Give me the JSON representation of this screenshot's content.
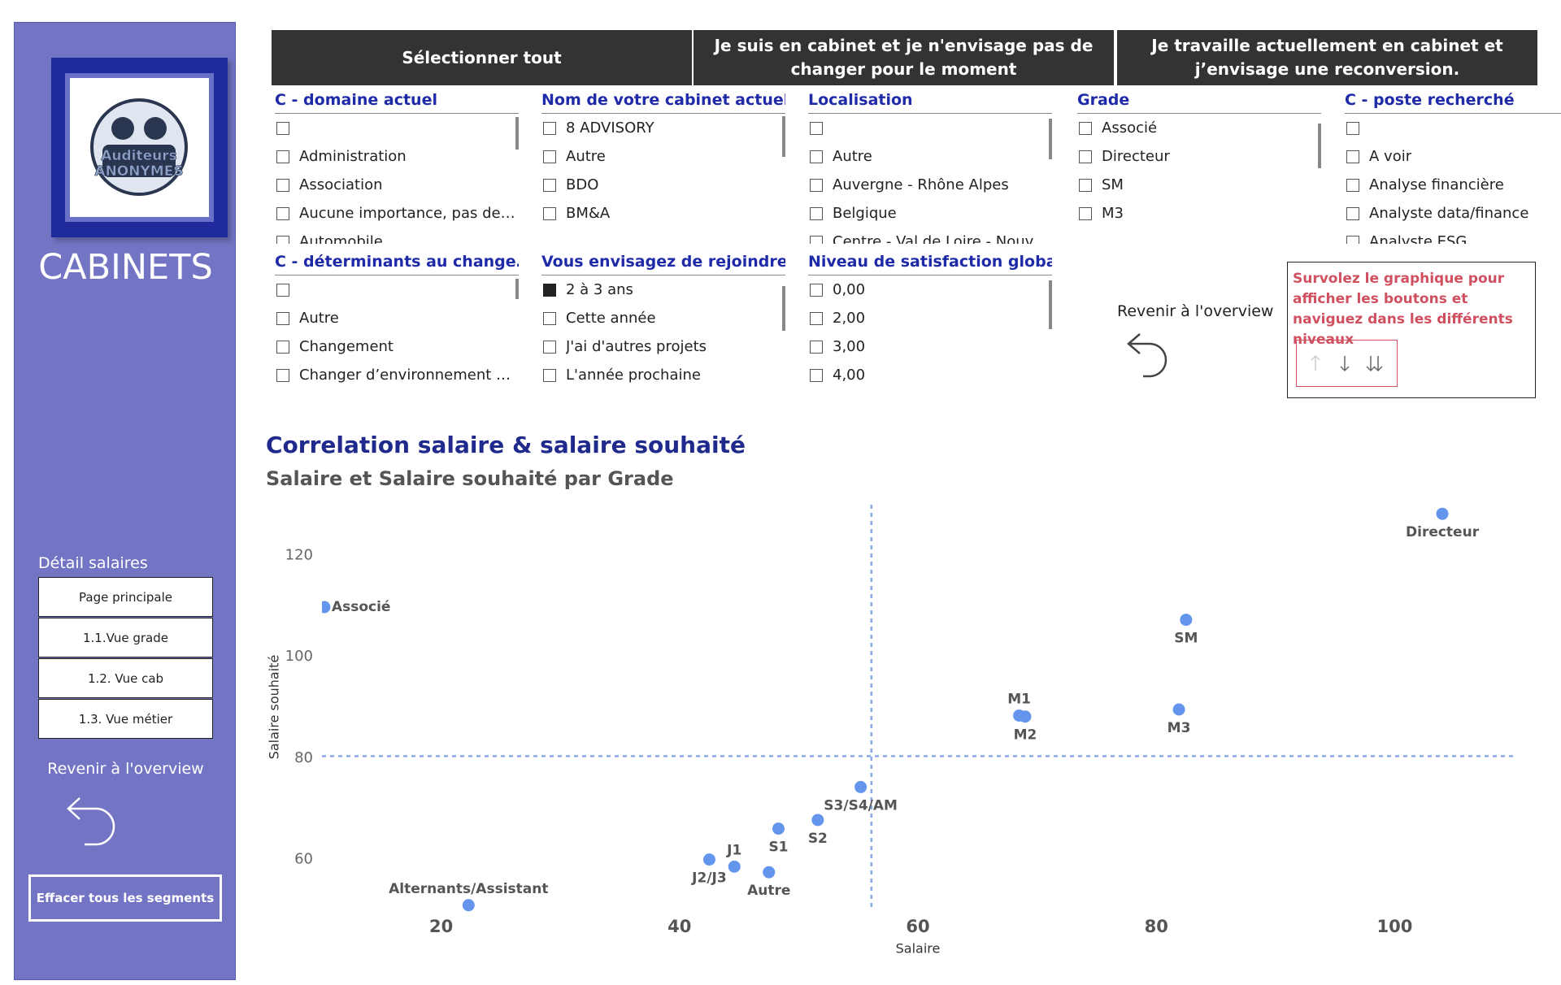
{
  "sidebar": {
    "logo_text": [
      "Auditeurs",
      "ANONYMES"
    ],
    "title": "CABINETS",
    "detail_label": "Détail salaires",
    "nav": [
      "Page principale",
      "1.1.Vue grade",
      "1.2. Vue cab",
      "1.3. Vue métier"
    ],
    "back_label": "Revenir à l'overview",
    "clear_button": "Effacer tous les segments"
  },
  "top_buttons": [
    "Sélectionner tout",
    "Je suis en cabinet et je n'envisage pas de changer pour le moment",
    "Je travaille actuellement en cabinet et j’envisage une reconversion."
  ],
  "slicers": [
    {
      "title": "C - domaine actuel",
      "items": [
        null,
        "Administration",
        "Association",
        "Aucune importance, pas de pré…",
        "Automobile"
      ]
    },
    {
      "title": "Nom de votre cabinet actuel",
      "items": [
        "8 ADVISORY",
        "Autre",
        "BDO",
        "BM&A"
      ]
    },
    {
      "title": "Localisation",
      "items": [
        null,
        "Autre",
        "Auvergne - Rhône Alpes",
        "Belgique",
        "Centre - Val de Loire - Nouvelle…"
      ]
    },
    {
      "title": "Grade",
      "items": [
        "Associé",
        "Directeur",
        "SM",
        "M3"
      ]
    },
    {
      "title": "C - poste recherché",
      "items": [
        null,
        "A voir",
        "Analyse financière",
        "Analyste data/finance",
        "Analyste ESG"
      ]
    },
    {
      "title": "C - déterminants au change…",
      "items": [
        null,
        "Autre",
        "Changement",
        "Changer d’environnement et êt…"
      ]
    },
    {
      "title": "Vous envisagez de rejoindre…",
      "items": [
        "2 à 3 ans",
        "Cette année",
        "J'ai d'autres projets",
        "L'année prochaine"
      ],
      "selected_index": 0
    },
    {
      "title": "Niveau de satisfaction global…",
      "items": [
        "0,00",
        "2,00",
        "3,00",
        "4,00"
      ]
    }
  ],
  "back_overview": "Revenir à l'overview",
  "hint": "Survolez le graphique pour afficher les boutons et naviguez dans les différents niveaux",
  "chart_data": {
    "type": "scatter",
    "title": "Correlation salaire & salaire souhaité",
    "subtitle": "Salaire et Salaire souhaité par Grade",
    "x_label": "Salaire",
    "y_label": "Salaire souhaité",
    "labels": [
      "Directeur",
      "Associé",
      "SM",
      "M1",
      "M2",
      "M3",
      "S3/S4/AM",
      "S2",
      "S1",
      "J1",
      "J2/J3",
      "Autre",
      "Alternants/Assistant"
    ],
    "x": [
      104,
      10.2,
      82.5,
      68.5,
      69,
      81.9,
      55.2,
      51.6,
      48.3,
      44.6,
      42.5,
      47.5,
      22.3
    ],
    "y": [
      128.2,
      109.8,
      107.3,
      88.4,
      88.2,
      89.6,
      74.3,
      67.8,
      66.1,
      58.6,
      60,
      57.5,
      51
    ],
    "color": "#6495ed",
    "xlim": [
      10,
      110
    ],
    "ylim": [
      50,
      130
    ],
    "xticks": [
      20,
      40,
      60,
      80,
      100
    ],
    "yticks": [
      60,
      80,
      100,
      120
    ],
    "x_reference": 56.1,
    "y_reference": 80.4
  }
}
